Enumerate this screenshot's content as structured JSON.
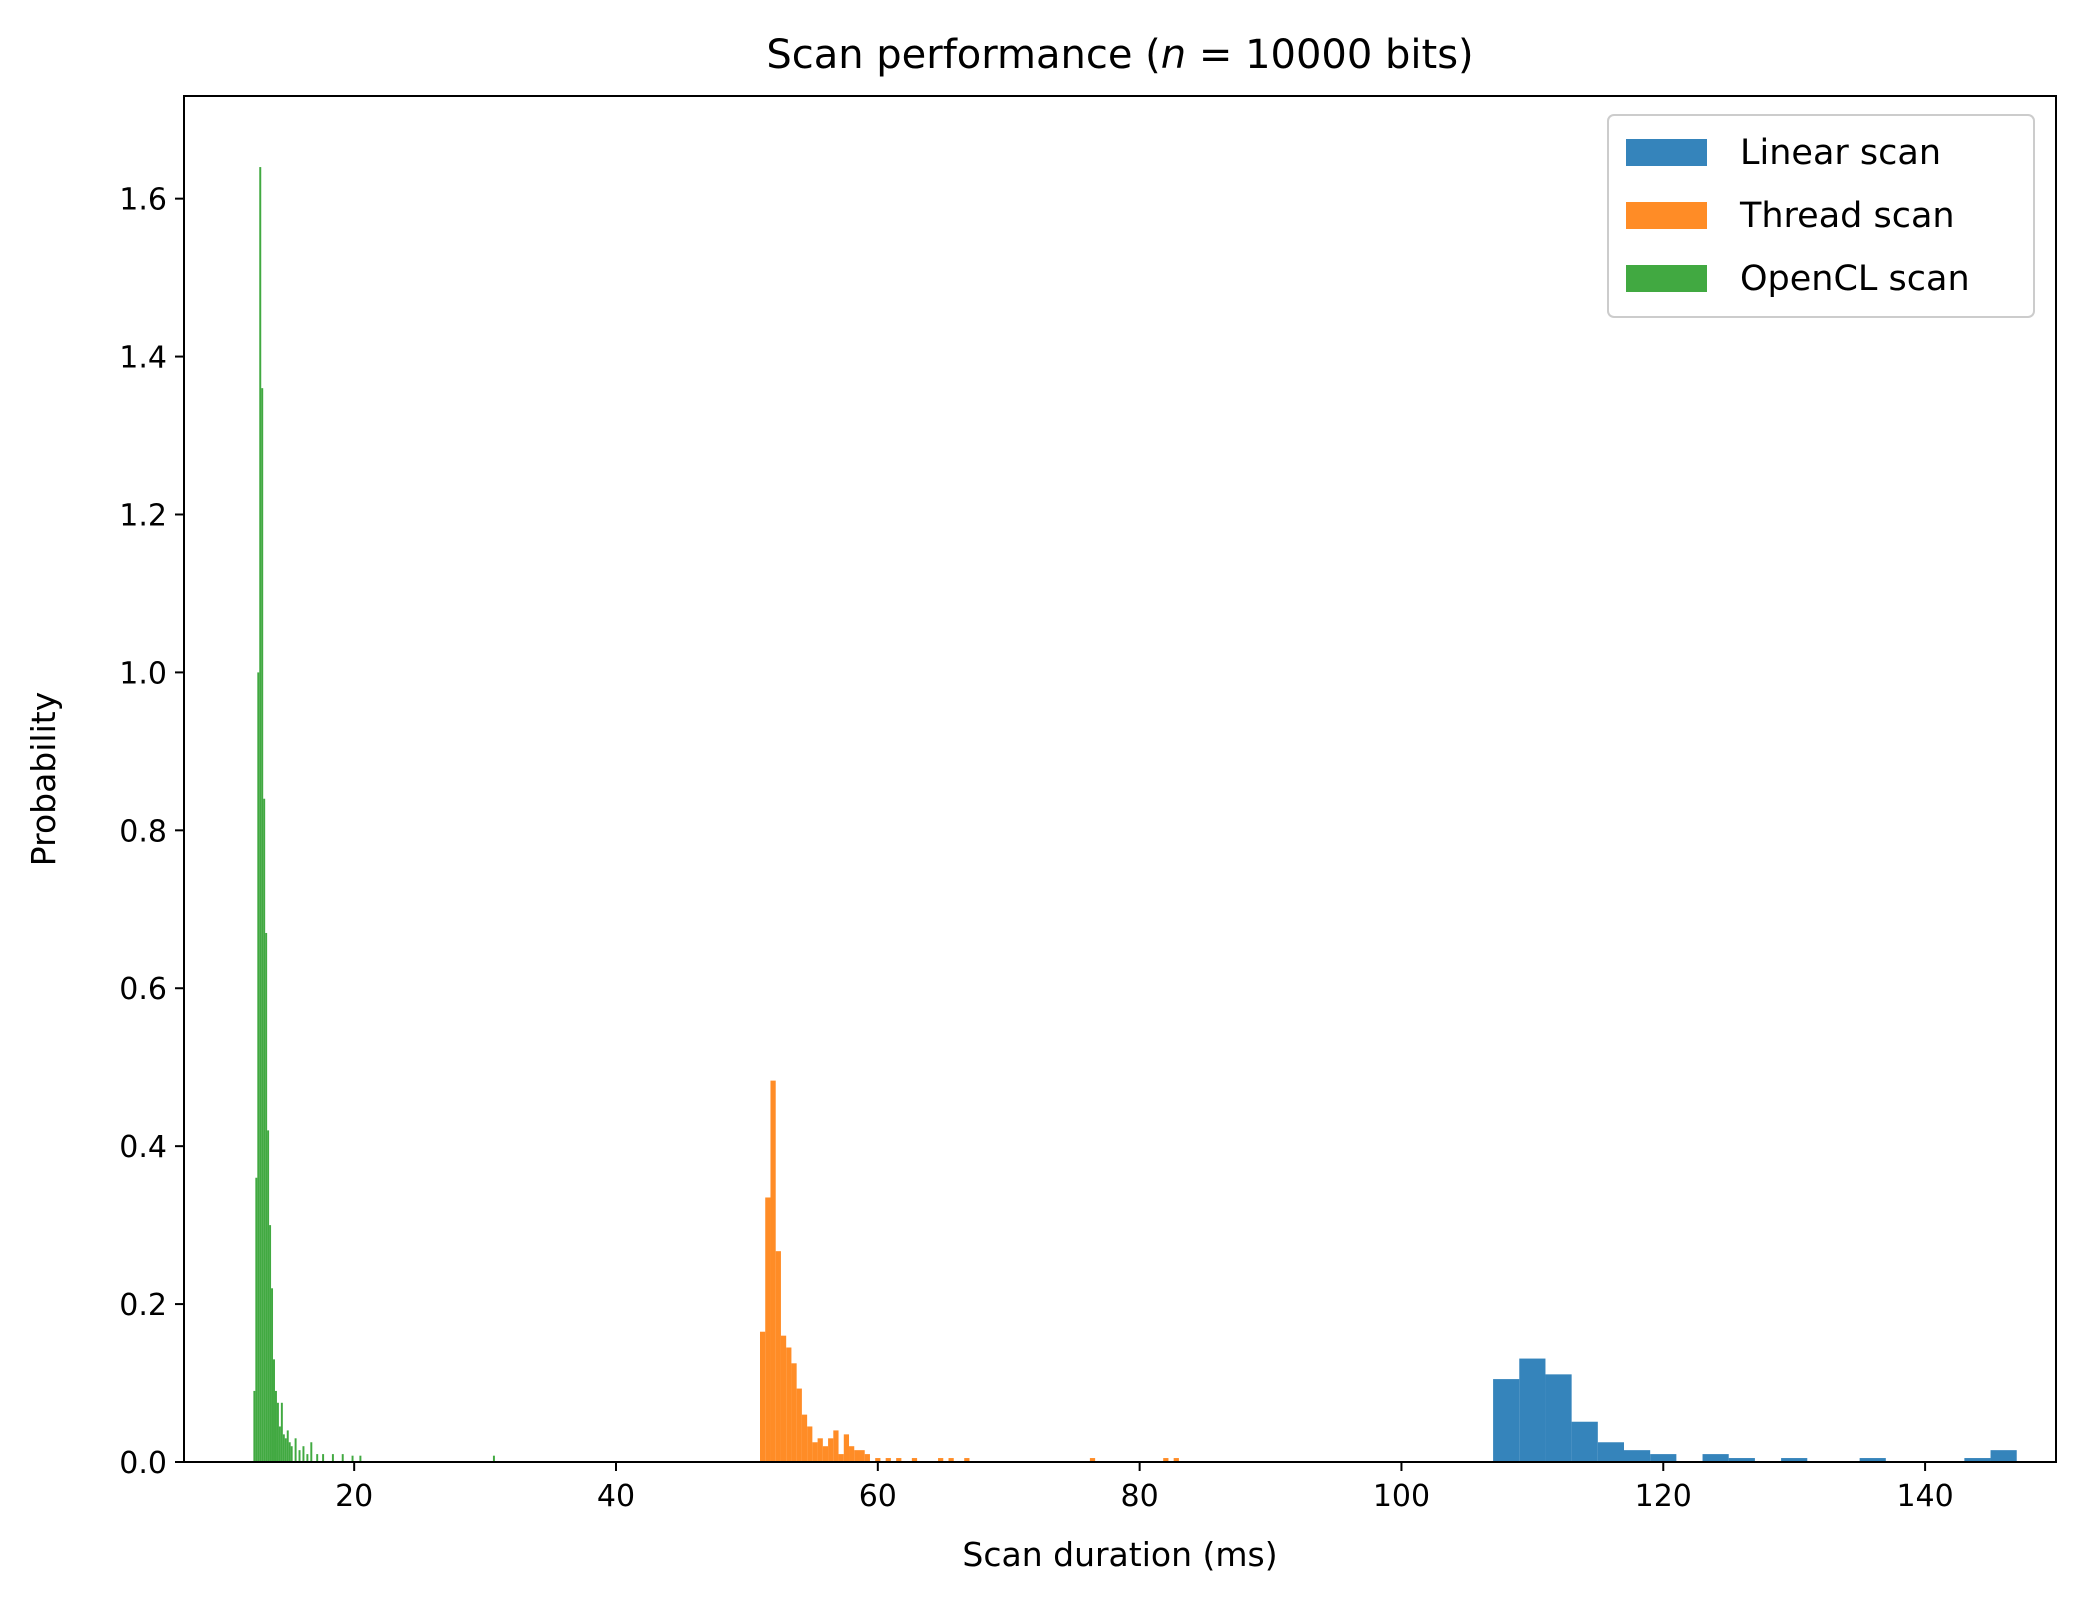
{
  "chart_data": {
    "type": "histogram",
    "title": "Scan performance (n = 10000 bits)",
    "title_parts": {
      "prefix": "Scan performance (",
      "var": "n",
      "suffix": " = 10000 bits)"
    },
    "xlabel": "Scan duration (ms)",
    "ylabel": "Probability",
    "xlim": [
      7,
      150
    ],
    "ylim": [
      0,
      1.73
    ],
    "xticks": [
      20,
      40,
      60,
      80,
      100,
      120,
      140
    ],
    "yticks": [
      0.0,
      0.2,
      0.4,
      0.6,
      0.8,
      1.0,
      1.2,
      1.4,
      1.6
    ],
    "legend_position": "top-right",
    "grid": false,
    "series": [
      {
        "name": "Linear scan",
        "color": "#1f77b4",
        "bins": [
          [
            107.0,
            109.0,
            0.105
          ],
          [
            109.0,
            111.0,
            0.131
          ],
          [
            111.0,
            113.0,
            0.111
          ],
          [
            113.0,
            115.0,
            0.051
          ],
          [
            115.0,
            117.0,
            0.025
          ],
          [
            117.0,
            119.0,
            0.015
          ],
          [
            119.0,
            121.0,
            0.01
          ],
          [
            121.0,
            123.0,
            0.0
          ],
          [
            123.0,
            125.0,
            0.01
          ],
          [
            125.0,
            127.0,
            0.005
          ],
          [
            127.0,
            129.0,
            0.0
          ],
          [
            129.0,
            131.0,
            0.005
          ],
          [
            131.0,
            133.0,
            0.0
          ],
          [
            133.0,
            135.0,
            0.0
          ],
          [
            135.0,
            137.0,
            0.005
          ],
          [
            137.0,
            139.0,
            0.0
          ],
          [
            139.0,
            141.0,
            0.0
          ],
          [
            141.0,
            143.0,
            0.0
          ],
          [
            143.0,
            145.0,
            0.005
          ],
          [
            145.0,
            147.0,
            0.015
          ]
        ]
      },
      {
        "name": "Thread scan",
        "color": "#ff7f0e",
        "bins": [
          [
            51.0,
            51.4,
            0.165
          ],
          [
            51.4,
            51.8,
            0.335
          ],
          [
            51.8,
            52.2,
            0.483
          ],
          [
            52.2,
            52.6,
            0.267
          ],
          [
            52.6,
            53.0,
            0.16
          ],
          [
            53.0,
            53.4,
            0.145
          ],
          [
            53.4,
            53.8,
            0.125
          ],
          [
            53.8,
            54.2,
            0.093
          ],
          [
            54.2,
            54.6,
            0.06
          ],
          [
            54.6,
            55.0,
            0.045
          ],
          [
            55.0,
            55.4,
            0.025
          ],
          [
            55.4,
            55.8,
            0.03
          ],
          [
            55.8,
            56.2,
            0.02
          ],
          [
            56.2,
            56.6,
            0.03
          ],
          [
            56.6,
            57.0,
            0.04
          ],
          [
            57.0,
            57.4,
            0.01
          ],
          [
            57.4,
            57.8,
            0.035
          ],
          [
            57.8,
            58.2,
            0.02
          ],
          [
            58.2,
            58.6,
            0.015
          ],
          [
            58.6,
            59.0,
            0.015
          ],
          [
            59.0,
            59.4,
            0.01
          ],
          [
            59.8,
            60.2,
            0.005
          ],
          [
            60.6,
            61.0,
            0.005
          ],
          [
            61.4,
            61.8,
            0.005
          ],
          [
            62.6,
            63.0,
            0.005
          ],
          [
            64.6,
            65.0,
            0.005
          ],
          [
            65.4,
            65.8,
            0.005
          ],
          [
            66.6,
            67.0,
            0.005
          ],
          [
            76.2,
            76.6,
            0.005
          ],
          [
            81.8,
            82.2,
            0.005
          ],
          [
            82.6,
            83.0,
            0.005
          ]
        ]
      },
      {
        "name": "OpenCL scan",
        "color": "#2ca02c",
        "bins": [
          [
            12.3,
            12.45,
            0.09
          ],
          [
            12.45,
            12.6,
            0.36
          ],
          [
            12.6,
            12.75,
            1.0
          ],
          [
            12.75,
            12.9,
            1.64
          ],
          [
            12.9,
            13.05,
            1.36
          ],
          [
            13.05,
            13.2,
            0.84
          ],
          [
            13.2,
            13.35,
            0.67
          ],
          [
            13.35,
            13.5,
            0.42
          ],
          [
            13.5,
            13.65,
            0.3
          ],
          [
            13.65,
            13.8,
            0.22
          ],
          [
            13.8,
            13.95,
            0.13
          ],
          [
            13.95,
            14.1,
            0.09
          ],
          [
            14.1,
            14.25,
            0.075
          ],
          [
            14.25,
            14.4,
            0.045
          ],
          [
            14.4,
            14.55,
            0.075
          ],
          [
            14.55,
            14.7,
            0.035
          ],
          [
            14.7,
            14.85,
            0.03
          ],
          [
            14.85,
            15.0,
            0.04
          ],
          [
            15.0,
            15.15,
            0.025
          ],
          [
            15.15,
            15.3,
            0.02
          ],
          [
            15.45,
            15.6,
            0.03
          ],
          [
            15.75,
            15.9,
            0.015
          ],
          [
            16.05,
            16.2,
            0.02
          ],
          [
            16.35,
            16.5,
            0.01
          ],
          [
            16.65,
            16.8,
            0.025
          ],
          [
            17.1,
            17.25,
            0.01
          ],
          [
            17.55,
            17.7,
            0.01
          ],
          [
            18.3,
            18.45,
            0.01
          ],
          [
            19.05,
            19.2,
            0.01
          ],
          [
            19.8,
            19.95,
            0.008
          ],
          [
            20.4,
            20.55,
            0.008
          ],
          [
            30.6,
            30.75,
            0.008
          ]
        ]
      }
    ]
  }
}
